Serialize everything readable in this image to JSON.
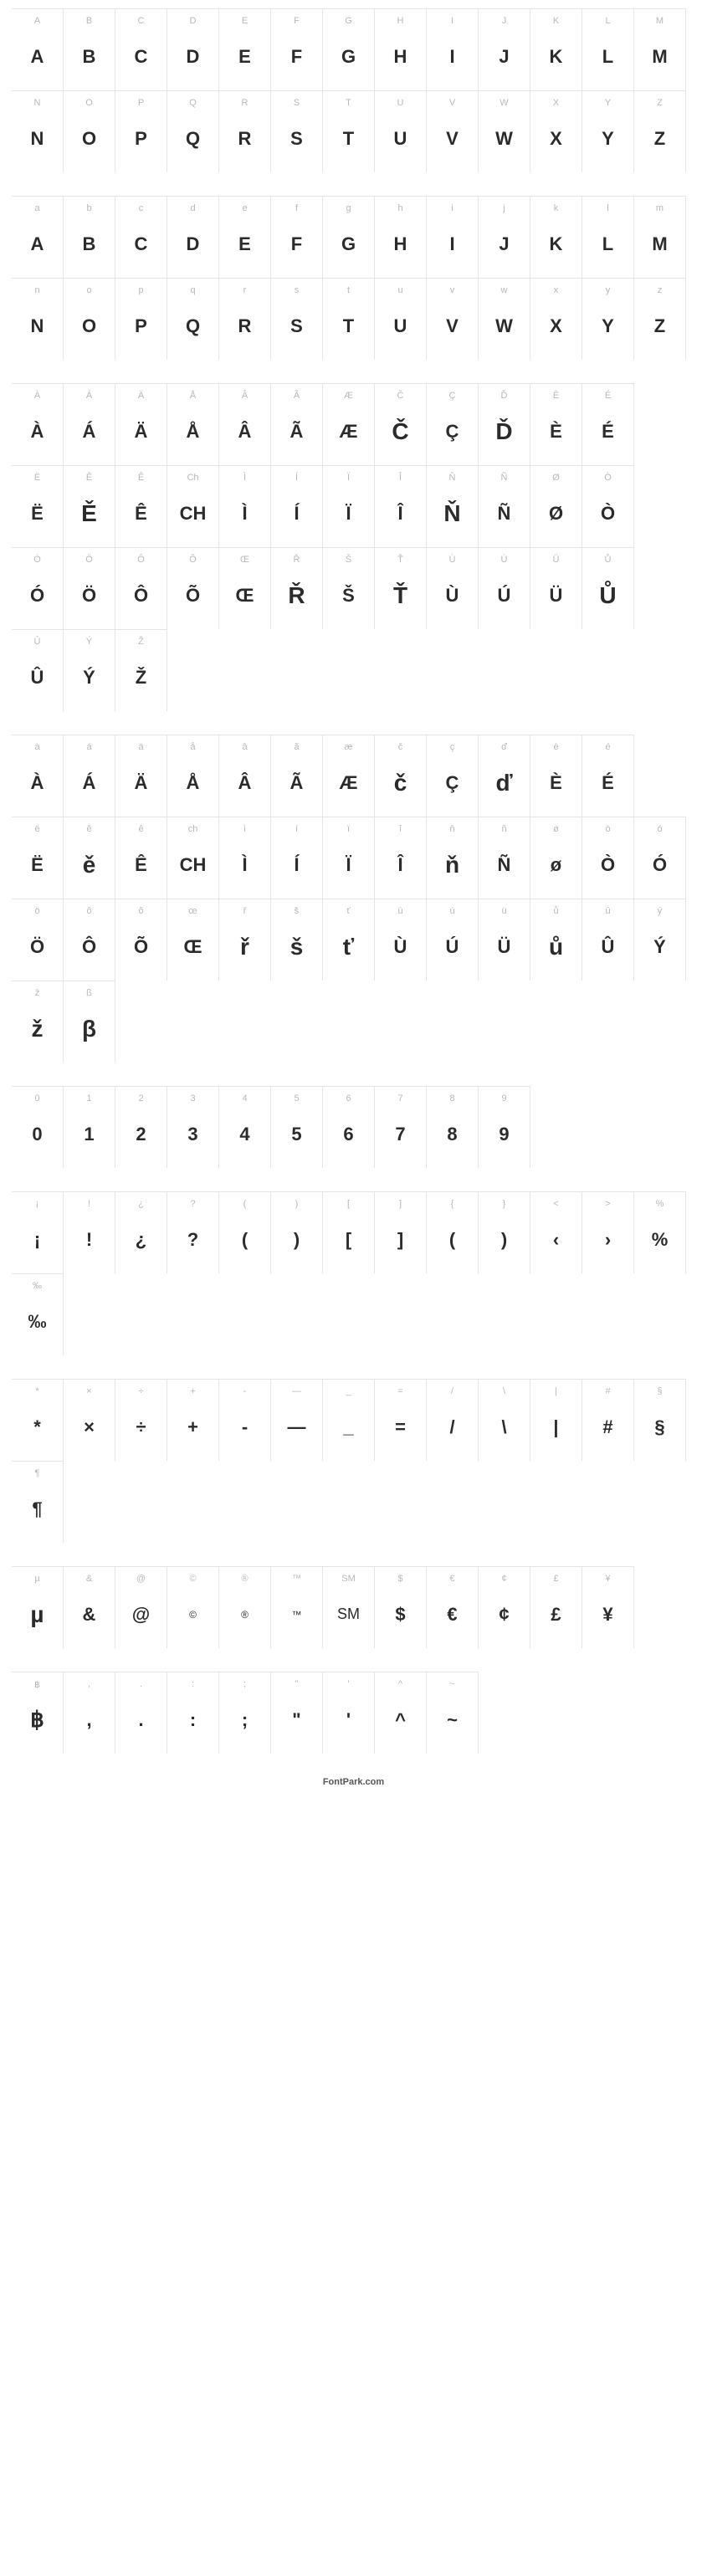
{
  "footer": "FontPark.com",
  "sections": [
    {
      "rows": [
        [
          {
            "label": "A",
            "glyph": "A"
          },
          {
            "label": "B",
            "glyph": "B"
          },
          {
            "label": "C",
            "glyph": "C"
          },
          {
            "label": "D",
            "glyph": "D"
          },
          {
            "label": "E",
            "glyph": "E"
          },
          {
            "label": "F",
            "glyph": "F"
          },
          {
            "label": "G",
            "glyph": "G"
          },
          {
            "label": "H",
            "glyph": "H"
          },
          {
            "label": "I",
            "glyph": "I"
          },
          {
            "label": "J",
            "glyph": "J"
          },
          {
            "label": "K",
            "glyph": "K"
          },
          {
            "label": "L",
            "glyph": "L"
          },
          {
            "label": "M",
            "glyph": "M"
          }
        ],
        [
          {
            "label": "N",
            "glyph": "N"
          },
          {
            "label": "O",
            "glyph": "O"
          },
          {
            "label": "P",
            "glyph": "P"
          },
          {
            "label": "Q",
            "glyph": "Q"
          },
          {
            "label": "R",
            "glyph": "R"
          },
          {
            "label": "S",
            "glyph": "S"
          },
          {
            "label": "T",
            "glyph": "T"
          },
          {
            "label": "U",
            "glyph": "U"
          },
          {
            "label": "V",
            "glyph": "V"
          },
          {
            "label": "W",
            "glyph": "W"
          },
          {
            "label": "X",
            "glyph": "X"
          },
          {
            "label": "Y",
            "glyph": "Y"
          },
          {
            "label": "Z",
            "glyph": "Z"
          }
        ]
      ]
    },
    {
      "rows": [
        [
          {
            "label": "a",
            "glyph": "A"
          },
          {
            "label": "b",
            "glyph": "B"
          },
          {
            "label": "c",
            "glyph": "C"
          },
          {
            "label": "d",
            "glyph": "D"
          },
          {
            "label": "e",
            "glyph": "E"
          },
          {
            "label": "f",
            "glyph": "F"
          },
          {
            "label": "g",
            "glyph": "G"
          },
          {
            "label": "h",
            "glyph": "H"
          },
          {
            "label": "i",
            "glyph": "I"
          },
          {
            "label": "j",
            "glyph": "J"
          },
          {
            "label": "k",
            "glyph": "K"
          },
          {
            "label": "l",
            "glyph": "L"
          },
          {
            "label": "m",
            "glyph": "M"
          }
        ],
        [
          {
            "label": "n",
            "glyph": "N"
          },
          {
            "label": "o",
            "glyph": "O"
          },
          {
            "label": "p",
            "glyph": "P"
          },
          {
            "label": "q",
            "glyph": "Q"
          },
          {
            "label": "r",
            "glyph": "R"
          },
          {
            "label": "s",
            "glyph": "S"
          },
          {
            "label": "t",
            "glyph": "T"
          },
          {
            "label": "u",
            "glyph": "U"
          },
          {
            "label": "v",
            "glyph": "V"
          },
          {
            "label": "w",
            "glyph": "W"
          },
          {
            "label": "x",
            "glyph": "X"
          },
          {
            "label": "y",
            "glyph": "Y"
          },
          {
            "label": "z",
            "glyph": "Z"
          }
        ]
      ]
    },
    {
      "rows": [
        [
          {
            "label": "À",
            "glyph": "À"
          },
          {
            "label": "Á",
            "glyph": "Á"
          },
          {
            "label": "Ä",
            "glyph": "Ä"
          },
          {
            "label": "Å",
            "glyph": "Å"
          },
          {
            "label": "Â",
            "glyph": "Â"
          },
          {
            "label": "Ã",
            "glyph": "Ã"
          },
          {
            "label": "Æ",
            "glyph": "Æ"
          },
          {
            "label": "Č",
            "glyph": "Č",
            "big": true
          },
          {
            "label": "Ç",
            "glyph": "Ç"
          },
          {
            "label": "Ď",
            "glyph": "Ď",
            "big": true
          },
          {
            "label": "È",
            "glyph": "È"
          },
          {
            "label": "É",
            "glyph": "É"
          }
        ],
        [
          {
            "label": "Ë",
            "glyph": "Ë"
          },
          {
            "label": "Ě",
            "glyph": "Ě",
            "big": true
          },
          {
            "label": "Ê",
            "glyph": "Ê"
          },
          {
            "label": "Ch",
            "glyph": "CH"
          },
          {
            "label": "Ì",
            "glyph": "Ì"
          },
          {
            "label": "Í",
            "glyph": "Í"
          },
          {
            "label": "Ï",
            "glyph": "Ï"
          },
          {
            "label": "Î",
            "glyph": "Î"
          },
          {
            "label": "Ň",
            "glyph": "Ň",
            "big": true
          },
          {
            "label": "Ñ",
            "glyph": "Ñ"
          },
          {
            "label": "Ø",
            "glyph": "Ø"
          },
          {
            "label": "Ò",
            "glyph": "Ò"
          }
        ],
        [
          {
            "label": "Ó",
            "glyph": "Ó"
          },
          {
            "label": "Ö",
            "glyph": "Ö"
          },
          {
            "label": "Ô",
            "glyph": "Ô"
          },
          {
            "label": "Õ",
            "glyph": "Õ"
          },
          {
            "label": "Œ",
            "glyph": "Œ"
          },
          {
            "label": "Ř",
            "glyph": "Ř",
            "big": true
          },
          {
            "label": "Š",
            "glyph": "Š"
          },
          {
            "label": "Ť",
            "glyph": "Ť",
            "big": true
          },
          {
            "label": "Ù",
            "glyph": "Ù"
          },
          {
            "label": "Ú",
            "glyph": "Ú"
          },
          {
            "label": "Ü",
            "glyph": "Ü"
          },
          {
            "label": "Ů",
            "glyph": "Ů",
            "big": true
          }
        ],
        [
          {
            "label": "Û",
            "glyph": "Û"
          },
          {
            "label": "Ý",
            "glyph": "Ý"
          },
          {
            "label": "Ž",
            "glyph": "Ž"
          }
        ]
      ]
    },
    {
      "rows": [
        [
          {
            "label": "à",
            "glyph": "À"
          },
          {
            "label": "á",
            "glyph": "Á"
          },
          {
            "label": "ä",
            "glyph": "Ä"
          },
          {
            "label": "å",
            "glyph": "Å"
          },
          {
            "label": "â",
            "glyph": "Â"
          },
          {
            "label": "ã",
            "glyph": "Ã"
          },
          {
            "label": "æ",
            "glyph": "Æ"
          },
          {
            "label": "č",
            "glyph": "č",
            "big": true
          },
          {
            "label": "ç",
            "glyph": "Ç"
          },
          {
            "label": "ď",
            "glyph": "ď",
            "big": true
          },
          {
            "label": "è",
            "glyph": "È"
          },
          {
            "label": "é",
            "glyph": "É"
          }
        ],
        [
          {
            "label": "ë",
            "glyph": "Ë"
          },
          {
            "label": "ě",
            "glyph": "ě",
            "big": true
          },
          {
            "label": "ê",
            "glyph": "Ê"
          },
          {
            "label": "ch",
            "glyph": "CH"
          },
          {
            "label": "ì",
            "glyph": "Ì"
          },
          {
            "label": "í",
            "glyph": "Í"
          },
          {
            "label": "ï",
            "glyph": "Ï"
          },
          {
            "label": "î",
            "glyph": "Î"
          },
          {
            "label": "ň",
            "glyph": "ň",
            "big": true
          },
          {
            "label": "ñ",
            "glyph": "Ñ"
          },
          {
            "label": "ø",
            "glyph": "ø"
          },
          {
            "label": "ò",
            "glyph": "Ò"
          },
          {
            "label": "ó",
            "glyph": "Ó"
          }
        ],
        [
          {
            "label": "ö",
            "glyph": "Ö"
          },
          {
            "label": "ô",
            "glyph": "Ô"
          },
          {
            "label": "õ",
            "glyph": "Õ"
          },
          {
            "label": "œ",
            "glyph": "Œ"
          },
          {
            "label": "ř",
            "glyph": "ř",
            "big": true
          },
          {
            "label": "š",
            "glyph": "š",
            "big": true
          },
          {
            "label": "ť",
            "glyph": "ť",
            "big": true
          },
          {
            "label": "ù",
            "glyph": "Ù"
          },
          {
            "label": "ú",
            "glyph": "Ú"
          },
          {
            "label": "ü",
            "glyph": "Ü"
          },
          {
            "label": "ů",
            "glyph": "ů",
            "big": true
          },
          {
            "label": "û",
            "glyph": "Û"
          },
          {
            "label": "ý",
            "glyph": "Ý"
          }
        ],
        [
          {
            "label": "ž",
            "glyph": "ž",
            "big": true
          },
          {
            "label": "ß",
            "glyph": "β",
            "big": true
          }
        ]
      ]
    },
    {
      "rows": [
        [
          {
            "label": "0",
            "glyph": "0"
          },
          {
            "label": "1",
            "glyph": "1"
          },
          {
            "label": "2",
            "glyph": "2"
          },
          {
            "label": "3",
            "glyph": "3"
          },
          {
            "label": "4",
            "glyph": "4"
          },
          {
            "label": "5",
            "glyph": "5"
          },
          {
            "label": "6",
            "glyph": "6"
          },
          {
            "label": "7",
            "glyph": "7"
          },
          {
            "label": "8",
            "glyph": "8"
          },
          {
            "label": "9",
            "glyph": "9"
          }
        ]
      ]
    },
    {
      "rows": [
        [
          {
            "label": "¡",
            "glyph": "¡"
          },
          {
            "label": "!",
            "glyph": "!"
          },
          {
            "label": "¿",
            "glyph": "¿"
          },
          {
            "label": "?",
            "glyph": "?"
          },
          {
            "label": "(",
            "glyph": "("
          },
          {
            "label": ")",
            "glyph": ")"
          },
          {
            "label": "[",
            "glyph": "["
          },
          {
            "label": "]",
            "glyph": "]"
          },
          {
            "label": "{",
            "glyph": "("
          },
          {
            "label": "}",
            "glyph": ")"
          },
          {
            "label": "<",
            "glyph": "‹"
          },
          {
            "label": ">",
            "glyph": "›"
          },
          {
            "label": "%",
            "glyph": "%"
          },
          {
            "label": "‰",
            "glyph": "‰"
          }
        ]
      ]
    },
    {
      "rows": [
        [
          {
            "label": "*",
            "glyph": "*"
          },
          {
            "label": "×",
            "glyph": "×"
          },
          {
            "label": "÷",
            "glyph": "÷"
          },
          {
            "label": "+",
            "glyph": "+"
          },
          {
            "label": "-",
            "glyph": "-"
          },
          {
            "label": "—",
            "glyph": "—"
          },
          {
            "label": "_",
            "glyph": "_"
          },
          {
            "label": "=",
            "glyph": "="
          },
          {
            "label": "/",
            "glyph": "/"
          },
          {
            "label": "\\",
            "glyph": "\\"
          },
          {
            "label": "|",
            "glyph": "|"
          },
          {
            "label": "#",
            "glyph": "#"
          },
          {
            "label": "§",
            "glyph": "§"
          },
          {
            "label": "¶",
            "glyph": "¶"
          }
        ]
      ]
    },
    {
      "rows": [
        [
          {
            "label": "µ",
            "glyph": "µ",
            "big": true
          },
          {
            "label": "&",
            "glyph": "&"
          },
          {
            "label": "@",
            "glyph": "@"
          },
          {
            "label": "©",
            "glyph": "©",
            "small": true
          },
          {
            "label": "®",
            "glyph": "®",
            "small": true
          },
          {
            "label": "™",
            "glyph": "™",
            "small": true
          },
          {
            "label": "SM",
            "glyph": "SM",
            "smtext": true
          },
          {
            "label": "$",
            "glyph": "$"
          },
          {
            "label": "€",
            "glyph": "€"
          },
          {
            "label": "¢",
            "glyph": "¢"
          },
          {
            "label": "£",
            "glyph": "£"
          },
          {
            "label": "¥",
            "glyph": "¥"
          }
        ]
      ]
    },
    {
      "rows": [
        [
          {
            "label": "฿",
            "glyph": "฿",
            "serif": true
          },
          {
            "label": ",",
            "glyph": ","
          },
          {
            "label": ".",
            "glyph": "."
          },
          {
            "label": ":",
            "glyph": ":"
          },
          {
            "label": ";",
            "glyph": ";"
          },
          {
            "label": "\"",
            "glyph": "\""
          },
          {
            "label": "'",
            "glyph": "'"
          },
          {
            "label": "^",
            "glyph": "^"
          },
          {
            "label": "~",
            "glyph": "~"
          }
        ]
      ]
    }
  ]
}
